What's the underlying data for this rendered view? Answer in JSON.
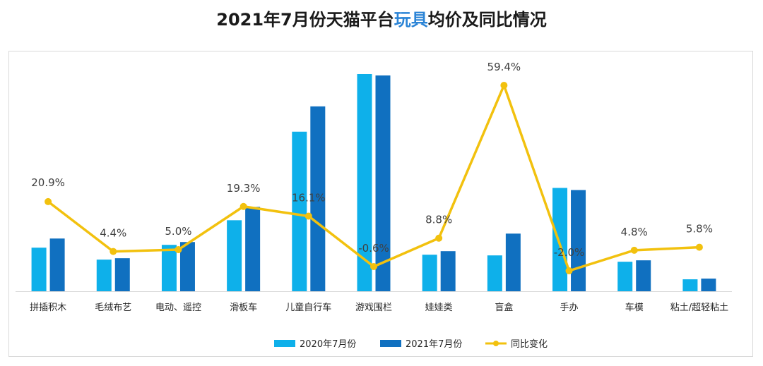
{
  "title": {
    "prefix": "2021年7月份天猫平台",
    "highlight": "玩具",
    "suffix": "均价及同比情况"
  },
  "colors": {
    "series_2020": "#0eb0ea",
    "series_2021": "#1070c0",
    "yoy_line": "#f2c10e",
    "title_highlight": "#2b84d6",
    "axis": "#d9d9d9",
    "text": "#404040"
  },
  "chart_data": {
    "type": "bar",
    "categories": [
      "拼插积木",
      "毛绒布艺",
      "电动、遥控",
      "滑板车",
      "儿童自行车",
      "游戏围栏",
      "娃娃类",
      "盲盒",
      "手办",
      "车模",
      "粘土/超轻粘土"
    ],
    "series": [
      {
        "name": "2020年7月份",
        "type": "bar",
        "values": [
          62,
          45,
          66,
          101,
          227,
          309,
          52,
          51,
          147,
          42,
          17
        ]
      },
      {
        "name": "2021年7月份",
        "type": "bar",
        "values": [
          75,
          47,
          70,
          120,
          263,
          307,
          57,
          82,
          144,
          44,
          18
        ]
      },
      {
        "name": "同比变化",
        "type": "line",
        "values": [
          20.9,
          4.4,
          5.0,
          19.3,
          16.1,
          -0.6,
          8.8,
          59.4,
          -2.0,
          4.8,
          5.8
        ],
        "labels": [
          "20.9%",
          "4.4%",
          "5.0%",
          "19.3%",
          "16.1%",
          "-0.6%",
          "8.8%",
          "59.4%",
          "-2.0%",
          "4.8%",
          "5.8%"
        ]
      }
    ],
    "legend": [
      "2020年7月份",
      "2021年7月份",
      "同比变化"
    ],
    "legend_position": "bottom",
    "bar_ylim": [
      0,
      310
    ],
    "line_ylim": [
      -4,
      62
    ],
    "grid": false
  }
}
